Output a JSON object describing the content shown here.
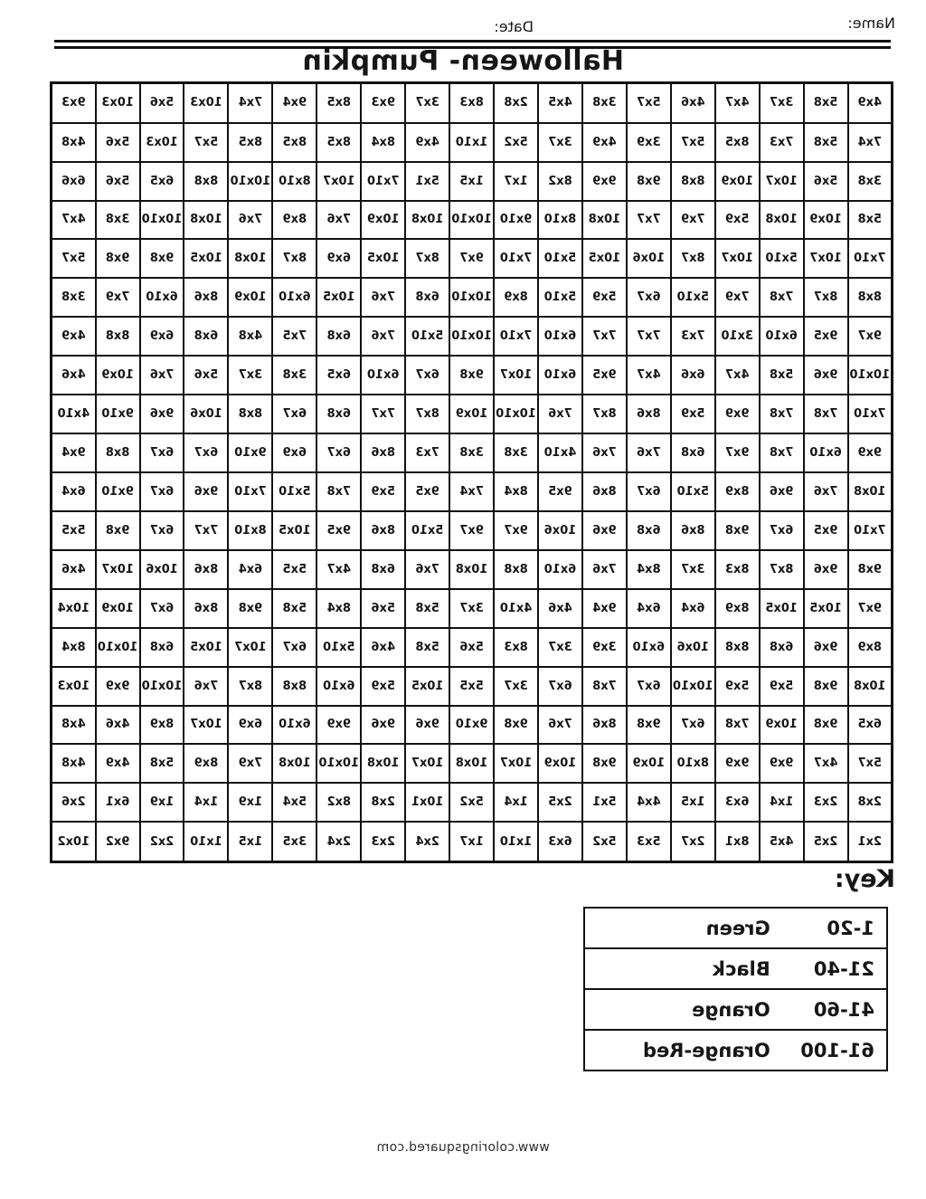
{
  "header": {
    "name_label": "Name:",
    "date_label": "Date:"
  },
  "title": "Halloween- Pumpkin",
  "grid": {
    "columns": 19,
    "rows": [
      [
        "4x9",
        "5x8",
        "3x7",
        "4x7",
        "4x6",
        "5x7",
        "3x8",
        "4x5",
        "2x8",
        "8x3",
        "3x7",
        "9x3",
        "8x5",
        "9x4",
        "7x4",
        "10x3",
        "5x6",
        "10x3",
        "9x3"
      ],
      [
        "7x4",
        "5x8",
        "7x3",
        "8x5",
        "5x7",
        "3x9",
        "4x9",
        "3x7",
        "5x2",
        "1x10",
        "4x9",
        "8x4",
        "8x5",
        "8x5",
        "8x5",
        "5x7",
        "10x3",
        "5x6",
        "4x8"
      ],
      [
        "3x8",
        "5x6",
        "10x7",
        "10x9",
        "8x8",
        "9x8",
        "9x9",
        "8x2",
        "1x7",
        "1x5",
        "5x1",
        "7x10",
        "10x7",
        "8x10",
        "10x10",
        "8x8",
        "6x5",
        "5x6",
        "6x6"
      ],
      [
        "5x8",
        "10x9",
        "10x8",
        "5x9",
        "7x9",
        "7x7",
        "10x8",
        "8x10",
        "9x10",
        "10x10",
        "10x8",
        "10x9",
        "7x6",
        "8x9",
        "7x6",
        "10x8",
        "10x10",
        "3x8",
        "4x7"
      ],
      [
        "7x10",
        "10x7",
        "5x10",
        "10x7",
        "8x7",
        "10x6",
        "10x5",
        "5x10",
        "7x10",
        "9x7",
        "8x7",
        "10x5",
        "6x9",
        "8x7",
        "10x8",
        "10x5",
        "9x8",
        "9x8",
        "5x7"
      ],
      [
        "8x8",
        "8x7",
        "7x8",
        "7x9",
        "5x10",
        "6x7",
        "5x9",
        "5x10",
        "8x9",
        "10x10",
        "6x8",
        "7x6",
        "10x5",
        "6x10",
        "10x9",
        "8x6",
        "6x10",
        "7x9",
        "3x8"
      ],
      [
        "9x7",
        "9x5",
        "6x10",
        "3x10",
        "7x3",
        "7x7",
        "7x7",
        "6x10",
        "7x10",
        "10x10",
        "5x10",
        "7x6",
        "6x8",
        "7x5",
        "4x8",
        "6x8",
        "6x9",
        "8x8",
        "4x9"
      ],
      [
        "10x10",
        "9x6",
        "5x8",
        "4x7",
        "6x6",
        "4x7",
        "9x5",
        "6x10",
        "10x7",
        "9x8",
        "6x7",
        "6x10",
        "6x5",
        "3x8",
        "3x7",
        "5x6",
        "7x6",
        "10x9",
        "4x6"
      ],
      [
        "7x10",
        "7x8",
        "7x8",
        "9x9",
        "5x9",
        "8x6",
        "8x7",
        "7x6",
        "10x10",
        "10x9",
        "8x7",
        "7x7",
        "6x8",
        "6x7",
        "8x8",
        "10x6",
        "9x6",
        "9x10",
        "4x10"
      ],
      [
        "9x9",
        "6x10",
        "7x8",
        "9x7",
        "6x8",
        "7x6",
        "7x6",
        "4x10",
        "3x8",
        "3x8",
        "7x3",
        "8x6",
        "6x7",
        "6x9",
        "9x10",
        "6x7",
        "6x7",
        "8x8",
        "9x4"
      ],
      [
        "10x8",
        "7x6",
        "9x6",
        "8x9",
        "5x10",
        "6x7",
        "8x6",
        "9x5",
        "8x4",
        "7x4",
        "9x5",
        "5x9",
        "7x8",
        "5x10",
        "7x10",
        "9x6",
        "6x7",
        "9x10",
        "6x4"
      ],
      [
        "7x10",
        "9x5",
        "6x7",
        "9x8",
        "8x6",
        "6x8",
        "9x6",
        "10x6",
        "9x7",
        "9x7",
        "5x10",
        "8x6",
        "9x5",
        "10x5",
        "8x10",
        "7x7",
        "6x7",
        "9x8",
        "5x5"
      ],
      [
        "9x8",
        "9x6",
        "8x7",
        "8x3",
        "3x7",
        "8x4",
        "7x6",
        "6x10",
        "8x8",
        "10x8",
        "7x6",
        "6x8",
        "4x7",
        "5x5",
        "6x4",
        "8x6",
        "10x6",
        "10x7",
        "4x6"
      ],
      [
        "9x7",
        "10x5",
        "10x5",
        "8x9",
        "6x4",
        "6x4",
        "9x4",
        "4x6",
        "4x10",
        "3x7",
        "5x8",
        "5x6",
        "8x4",
        "5x8",
        "9x8",
        "8x6",
        "6x7",
        "10x9",
        "10x4"
      ],
      [
        "8x9",
        "9x6",
        "6x8",
        "8x8",
        "10x6",
        "6x10",
        "3x9",
        "3x7",
        "8x3",
        "5x6",
        "5x8",
        "4x6",
        "5x10",
        "6x7",
        "10x7",
        "10x5",
        "6x8",
        "10x10",
        "8x4"
      ],
      [
        "10x8",
        "9x8",
        "5x9",
        "5x9",
        "10x10",
        "6x7",
        "7x8",
        "6x7",
        "3x7",
        "5x5",
        "10x5",
        "5x9",
        "6x10",
        "8x8",
        "8x7",
        "7x6",
        "10x10",
        "9x9",
        "10x3"
      ],
      [
        "6x5",
        "9x8",
        "10x9",
        "7x8",
        "6x7",
        "9x8",
        "8x6",
        "7x6",
        "9x8",
        "9x10",
        "9x6",
        "9x6",
        "9x9",
        "6x10",
        "6x9",
        "10x7",
        "8x9",
        "4x6",
        "4x8"
      ],
      [
        "5x7",
        "4x7",
        "9x9",
        "9x9",
        "8x10",
        "10x9",
        "9x8",
        "10x9",
        "10x7",
        "10x8",
        "10x7",
        "10x8",
        "10x10",
        "10x8",
        "7x9",
        "8x9",
        "5x8",
        "4x9",
        "4x8"
      ],
      [
        "2x8",
        "2x3",
        "1x4",
        "6x3",
        "1x5",
        "4x4",
        "5x1",
        "2x5",
        "1x4",
        "5x2",
        "10x1",
        "2x8",
        "8x2",
        "5x4",
        "1x9",
        "1x4",
        "1x9",
        "6x1",
        "2x6"
      ],
      [
        "2x1",
        "2x5",
        "4x5",
        "8x1",
        "2x7",
        "5x3",
        "5x2",
        "6x3",
        "1x10",
        "1x7",
        "2x4",
        "2x3",
        "2x4",
        "3x5",
        "1x5",
        "1x10",
        "2x2",
        "9x2",
        "10x2"
      ]
    ]
  },
  "key": {
    "heading": "Key:",
    "entries": [
      {
        "range": "1-20",
        "color": "Green"
      },
      {
        "range": "21-40",
        "color": "Black"
      },
      {
        "range": "41-60",
        "color": "Orange"
      },
      {
        "range": "61-100",
        "color": "Orange-Red"
      }
    ]
  },
  "footer": {
    "url": "www.coloringsquared.com"
  }
}
